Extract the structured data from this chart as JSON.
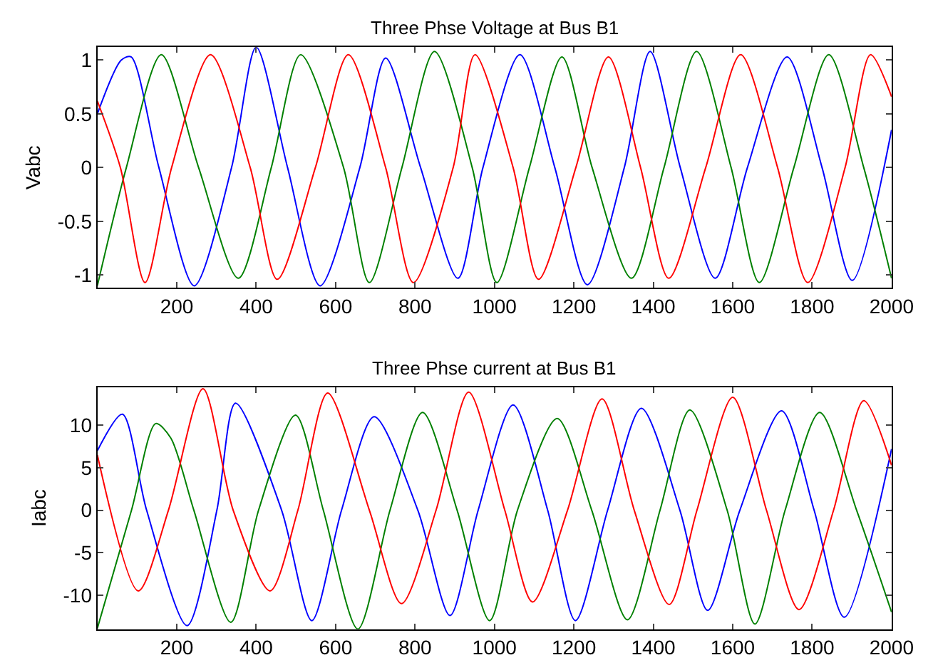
{
  "chart_data": [
    {
      "type": "line",
      "title": "Three Phse Voltage at Bus B1",
      "ylabel": "Vabc",
      "xlim": [
        0,
        2000
      ],
      "ylim": [
        -1.12,
        1.12
      ],
      "xticks": [
        200,
        400,
        600,
        800,
        1000,
        1200,
        1400,
        1600,
        1800,
        2000
      ],
      "yticks": [
        -1,
        -0.5,
        0,
        0.5,
        1
      ],
      "marker": "none",
      "line_style": "solid",
      "series": [
        {
          "color": "#0000ff",
          "x": [
            0,
            60,
            85,
            155,
            244,
            338,
            400,
            479,
            561,
            661,
            726,
            814,
            908,
            971,
            1064,
            1152,
            1234,
            1327,
            1392,
            1468,
            1556,
            1637,
            1737,
            1825,
            1901,
            2000
          ],
          "values": [
            0.5,
            1.0,
            1.03,
            0,
            -1.1,
            0,
            1.12,
            0,
            -1.1,
            0,
            1.02,
            0,
            -1.03,
            0,
            1.05,
            0,
            -1.09,
            0,
            1.08,
            0,
            -1.03,
            0,
            1.03,
            0,
            -1.05,
            0.35
          ]
        },
        {
          "color": "#008000",
          "x": [
            0,
            73,
            161,
            255,
            355,
            438,
            512,
            620,
            685,
            767,
            849,
            944,
            1006,
            1088,
            1170,
            1246,
            1345,
            1427,
            1509,
            1596,
            1667,
            1754,
            1842,
            1930,
            2000
          ],
          "values": [
            -1.1,
            0,
            1.05,
            0,
            -1.03,
            0,
            1.05,
            0,
            -1.07,
            0,
            1.08,
            0,
            -1.07,
            0,
            1.03,
            0,
            -1.03,
            0,
            1.08,
            0,
            -1.07,
            0,
            1.05,
            0,
            -1.03
          ]
        },
        {
          "color": "#ff0000",
          "x": [
            0,
            58,
            120,
            187,
            285,
            385,
            453,
            549,
            632,
            726,
            796,
            896,
            951,
            1047,
            1111,
            1205,
            1287,
            1368,
            1439,
            1532,
            1620,
            1713,
            1789,
            1883,
            1947,
            2000
          ],
          "values": [
            0.62,
            0,
            -1.07,
            0,
            1.05,
            0,
            -1.04,
            0,
            1.05,
            0,
            -1.07,
            0,
            1.05,
            0,
            -1.04,
            0,
            1.03,
            0,
            -1.03,
            0,
            1.05,
            0,
            -1.07,
            0,
            1.05,
            0.66
          ]
        }
      ]
    },
    {
      "type": "line",
      "title": "Three Phse current at Bus B1",
      "ylabel": "Iabc",
      "xlim": [
        0,
        2000
      ],
      "ylim": [
        -14,
        14.5
      ],
      "xticks": [
        200,
        400,
        600,
        800,
        1000,
        1200,
        1400,
        1600,
        1800,
        2000
      ],
      "yticks": [
        -10,
        -5,
        0,
        5,
        10
      ],
      "marker": "none",
      "line_style": "solid",
      "series": [
        {
          "color": "#0000ff",
          "x": [
            0,
            63,
            124,
            226,
            301,
            348,
            464,
            540,
            615,
            697,
            807,
            888,
            959,
            1047,
            1134,
            1204,
            1285,
            1370,
            1467,
            1537,
            1618,
            1723,
            1805,
            1881,
            2000
          ],
          "values": [
            7,
            11.3,
            0,
            -13.6,
            0,
            12.6,
            0,
            -13,
            0,
            11,
            0,
            -12.4,
            0,
            12.4,
            0,
            -13,
            0,
            12,
            0,
            -11.8,
            0,
            11.7,
            0,
            -12.6,
            7.2
          ]
        },
        {
          "color": "#008000",
          "x": [
            0,
            86,
            147,
            185,
            243,
            336,
            406,
            499,
            569,
            656,
            737,
            819,
            906,
            988,
            1058,
            1158,
            1245,
            1335,
            1417,
            1492,
            1586,
            1656,
            1732,
            1819,
            1912,
            2000
          ],
          "values": [
            -13.9,
            0,
            10.2,
            8.5,
            0,
            -13.2,
            0,
            11.2,
            0,
            -14,
            0,
            11.5,
            0,
            -13,
            0,
            10.8,
            0,
            -12.9,
            0,
            11.8,
            0,
            -13.4,
            0,
            11.5,
            0,
            -12
          ]
        },
        {
          "color": "#ff0000",
          "x": [
            0,
            103,
            179,
            266,
            342,
            435,
            505,
            580,
            685,
            766,
            853,
            935,
            1026,
            1096,
            1184,
            1271,
            1352,
            1440,
            1510,
            1600,
            1685,
            1767,
            1854,
            1930,
            2000
          ],
          "values": [
            6.5,
            -9.5,
            0,
            14.3,
            0,
            -9.5,
            0,
            13.8,
            0,
            -11,
            0,
            13.9,
            0,
            -10.8,
            0,
            13.1,
            0,
            -11.1,
            0,
            13.3,
            0,
            -11.7,
            0,
            12.9,
            5.3
          ]
        }
      ]
    }
  ]
}
